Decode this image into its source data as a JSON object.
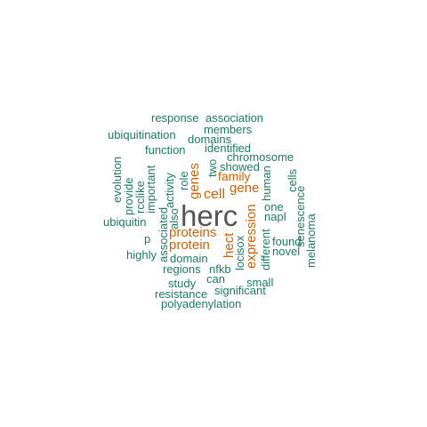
{
  "colors": {
    "teal": "#1b7d5f",
    "orange": "#d95f02",
    "gray": "#555555"
  },
  "words": {
    "herc": "herc",
    "cell": "cell",
    "gene": "gene",
    "proteins": "proteins",
    "protein": "protein",
    "genes": "genes",
    "family": "family",
    "hect": "hect",
    "expression": "expression",
    "response": "response",
    "association": "association",
    "members": "members",
    "ubiquitination": "ubiquitination",
    "domains": "domains",
    "function": "function",
    "identified": "identified",
    "chromosome": "chromosome",
    "showed": "showed",
    "two": "two",
    "role": "role",
    "activity": "activity",
    "important": "important",
    "rcclike": "rcclike",
    "provide": "provide",
    "evolution": "evolution",
    "human": "human",
    "cells": "cells",
    "senescence": "senescence",
    "melanoma": "melanoma",
    "one": "one",
    "napl": "napl",
    "ubiquitin": "ubiquitin",
    "also": "also",
    "associated": "associated",
    "p": "p",
    "highly": "highly",
    "domain": "domain",
    "regions": "regions",
    "nfkb": "nfkb",
    "can": "can",
    "study": "study",
    "small": "small",
    "resistance": "resistance",
    "significant": "significant",
    "polyadenylation": "polyadenylation",
    "loci": "loci",
    "sox": "sox",
    "different": "different",
    "found": "found",
    "novel": "novel"
  }
}
